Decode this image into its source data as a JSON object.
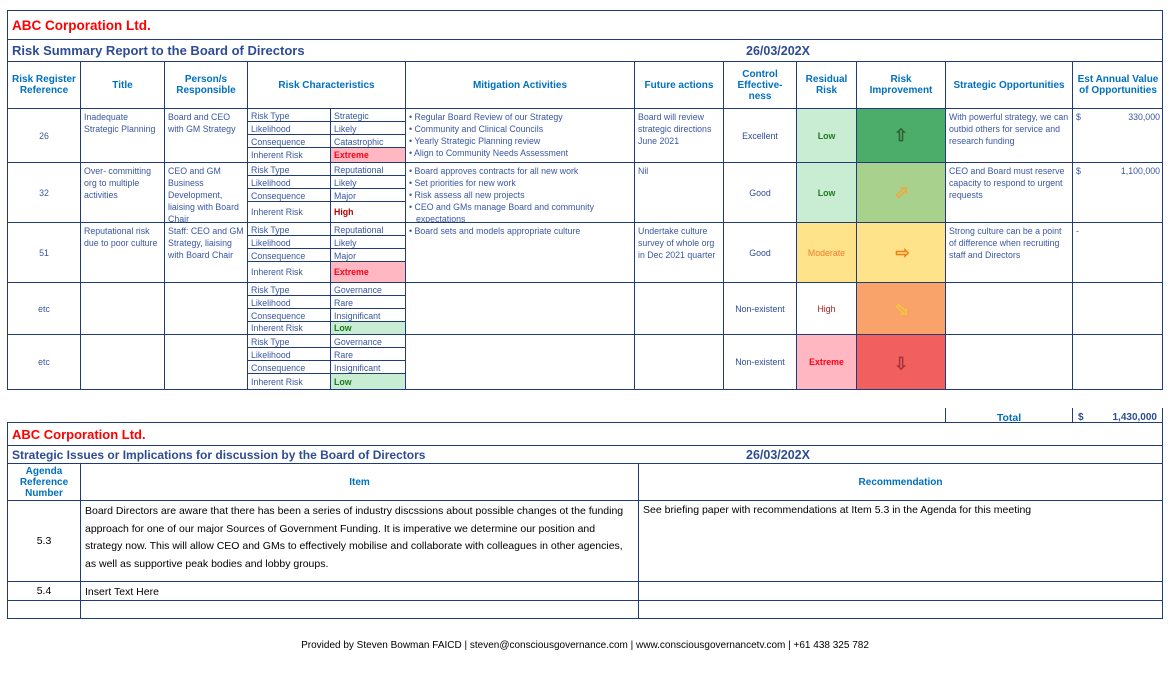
{
  "colors": {
    "brand_red": "#FF0000",
    "heading_blue": "#0070C0",
    "navy_text": "#2E4C93",
    "status_low_bg": "#C9EDD2",
    "status_low_text": "#1E7A1E",
    "status_moderate_bg": "#FFE38A",
    "status_moderate_text": "#ED7D31",
    "status_high_text": "#9B1B1B",
    "status_extreme_bg": "#FFB7C2",
    "status_extreme_text": "#FF0016"
  },
  "report1": {
    "company": "ABC Corporation Ltd.",
    "title": "Risk Summary Report to the Board of Directors",
    "date": "26/03/202X",
    "headers": [
      "Risk Register Reference",
      "Title",
      "Person/s Responsible",
      "Risk Characteristics",
      "Mitigation Activities",
      "Future actions",
      "Control Effective-ness",
      "Residual Risk",
      "Risk Improvement",
      "Strategic Opportunities",
      "Est Annual Value of Opportunities"
    ],
    "char_labels": [
      "Risk Type",
      "Likelihood",
      "Consequence",
      "Inherent Risk"
    ],
    "rows": [
      {
        "ref": "26",
        "title": "Inadequate Strategic Planning",
        "responsible": "Board and CEO with GM Strategy",
        "char": {
          "risk_type": "Strategic",
          "likelihood": "Likely",
          "consequence": "Catastrophic",
          "inherent_risk": "Extreme",
          "inherent_style": "extreme"
        },
        "mitigation": [
          "Regular Board Review of our Strategy",
          "Community and Clinical Councils",
          "Yearly Strategic Planning review",
          "Align to Community Needs Assessment"
        ],
        "future": "Board will review strategic directions June 2021",
        "control": "Excellent",
        "residual": "Low",
        "residual_style": "low",
        "improvement": {
          "direction": "up",
          "bg": "#4BAD69",
          "arrow": "#315E36"
        },
        "strategic": "With powerful strategy, we can outbid others for service and research funding",
        "est": {
          "dollar": "330,000"
        }
      },
      {
        "ref": "32",
        "title": "Over- committing org to multiple activities",
        "responsible": "CEO and GM Business Development, liaising with Board Chair",
        "char": {
          "risk_type": "Reputational",
          "likelihood": "Likely",
          "consequence": "Major",
          "inherent_risk": "High",
          "inherent_style": "high"
        },
        "mitigation": [
          "Board approves contracts for all new work",
          "Set priorities for new work",
          "Risk assess all new projects",
          "CEO and GMs manage Board and community expectations"
        ],
        "future": "Nil",
        "control": "Good",
        "residual": "Low",
        "residual_style": "low",
        "improvement": {
          "direction": "up-right",
          "bg": "#A9D18E",
          "arrow": "#F4A636"
        },
        "strategic": "CEO and Board must reserve capacity to respond to urgent requests",
        "est": {
          "dollar": "1,100,000"
        }
      },
      {
        "ref": "51",
        "title": "Reputational risk due to poor culture",
        "responsible": "Staff: CEO and GM Strategy, liaising with Board Chair",
        "char": {
          "risk_type": "Reputational",
          "likelihood": "Likely",
          "consequence": "Major",
          "inherent_risk": "Extreme",
          "inherent_style": "extreme"
        },
        "mitigation": [
          "Board sets and models appropriate culture"
        ],
        "future": "Undertake culture survey of whole org  in Dec 2021 quarter",
        "control": "Good",
        "residual": "Moderate",
        "residual_style": "moderate",
        "improvement": {
          "direction": "right",
          "bg": "#FFE38A",
          "arrow": "#F07E16"
        },
        "strategic": "Strong culture can be a point of difference when recruiting staff and Directors",
        "est": {
          "text": "-"
        }
      },
      {
        "ref": "etc",
        "title": "",
        "responsible": "",
        "char": {
          "risk_type": "Governance",
          "likelihood": "Rare",
          "consequence": "Insignificant",
          "inherent_risk": "Low",
          "inherent_style": "low"
        },
        "mitigation": [],
        "future": "",
        "control": "Non-existent",
        "residual": "High",
        "residual_style": "high",
        "improvement": {
          "direction": "down-right",
          "bg": "#F9A36B",
          "arrow": "#F0C63C"
        },
        "strategic": "",
        "est": null
      },
      {
        "ref": "etc",
        "title": "",
        "responsible": "",
        "char": {
          "risk_type": "Governance",
          "likelihood": "Rare",
          "consequence": "Insignificant",
          "inherent_risk": "Low",
          "inherent_style": "low"
        },
        "mitigation": [],
        "future": "",
        "control": "Non-existent",
        "residual": "Extreme",
        "residual_style": "extreme",
        "improvement": {
          "direction": "down",
          "bg": "#F15F5F",
          "arrow": "#A5333E"
        },
        "strategic": "",
        "est": null
      }
    ],
    "total_label": "Total",
    "total_currency": "$",
    "total_value": "1,430,000"
  },
  "report2": {
    "company": "ABC Corporation Ltd.",
    "title": "Strategic Issues or Implications for discussion by the Board of Directors",
    "date": "26/03/202X",
    "headers": [
      "Agenda Reference Number",
      "Item",
      "Recommendation"
    ],
    "rows": [
      {
        "num": "5.3",
        "item": "Board Directors are aware that there has been a series of industry discssions about possible changes ot the funding approach for one of our major Sources of Government Funding. It is imperative we determine our position and strategy now.  This will allow CEO and GMs to effectively mobilise and collaborate with colleagues in other agencies, as well as supportive peak bodies and lobby groups.",
        "rec": "See briefing paper with recommendations at Item 5.3 in the Agenda for this meeting"
      },
      {
        "num": "5.4",
        "item": "Insert Text Here",
        "rec": ""
      },
      {
        "num": "",
        "item": "",
        "rec": ""
      }
    ]
  },
  "footer": "Provided by Steven Bowman FAICD | steven@consciousgovernance.com | www.consciousgovernancetv.com | +61 438 325 782"
}
